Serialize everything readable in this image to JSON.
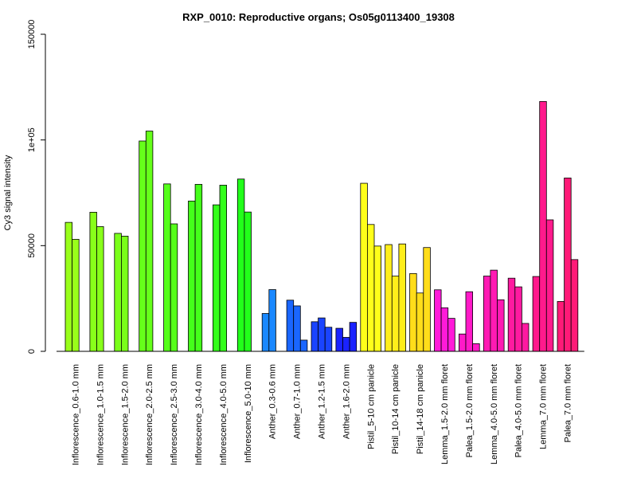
{
  "chart_data": {
    "type": "bar",
    "title": "RXP_0010: Reproductive organs; Os05g0113400_19308",
    "xlabel": "",
    "ylabel": "Cy3 signal intensity",
    "ylim": [
      0,
      150000
    ],
    "yticks": [
      0,
      50000,
      100000,
      150000
    ],
    "ytick_labels": [
      "0",
      "50000",
      "1e+05",
      "150000"
    ],
    "grid": false,
    "legend": "none",
    "groups": [
      {
        "label": "Inflorescence_0.6-1.0 mm",
        "color": "#99ff1a",
        "values": [
          61000,
          53000
        ]
      },
      {
        "label": "Inflorescence_1.0-1.5 mm",
        "color": "#88ff1a",
        "values": [
          65800,
          59000
        ]
      },
      {
        "label": "Inflorescence_1.5-2.0 mm",
        "color": "#7aff1a",
        "values": [
          55800,
          54500
        ]
      },
      {
        "label": "Inflorescence_2.0-2.5 mm",
        "color": "#66ff1a",
        "values": [
          99500,
          104200
        ]
      },
      {
        "label": "Inflorescence_2.5-3.0 mm",
        "color": "#55ff1a",
        "values": [
          79200,
          60300
        ]
      },
      {
        "label": "Inflorescence_3.0-4.0 mm",
        "color": "#44ff1a",
        "values": [
          71100,
          79000
        ]
      },
      {
        "label": "Inflorescence_4.0-5.0 mm",
        "color": "#33ff1a",
        "values": [
          69300,
          78600
        ]
      },
      {
        "label": "Inflorescence_5.0-10 mm",
        "color": "#22ff1a",
        "values": [
          81500,
          65900
        ]
      },
      {
        "label": "Anther_0.3-0.6 mm",
        "color": "#1a88ff",
        "values": [
          17900,
          29200
        ]
      },
      {
        "label": "Anther_0.7-1.0 mm",
        "color": "#1a66ff",
        "values": [
          24200,
          21500,
          5300
        ]
      },
      {
        "label": "Anther_1.2-1.5 mm",
        "color": "#1a44ff",
        "values": [
          14000,
          15800,
          11400
        ]
      },
      {
        "label": "Anther_1.6-2.0 mm",
        "color": "#1a22ff",
        "values": [
          10900,
          6600,
          13700
        ]
      },
      {
        "label": "Pistil_5-10 cm panicle",
        "color": "#ffff1a",
        "values": [
          79500,
          60000,
          49800
        ]
      },
      {
        "label": "Pistil_10-14 cm panicle",
        "color": "#ffee1a",
        "values": [
          50500,
          35600,
          50800
        ]
      },
      {
        "label": "Pistil_14-18 cm panicle",
        "color": "#ffdd1a",
        "values": [
          36800,
          27600,
          49100
        ]
      },
      {
        "label": "Lemma_1.5-2.0 mm floret",
        "color": "#ff1ad9",
        "values": [
          29100,
          20600,
          15600
        ]
      },
      {
        "label": "Palea_1.5-2.0 mm floret",
        "color": "#ff1ac8",
        "values": [
          8200,
          28200,
          3600
        ]
      },
      {
        "label": "Lemma_4.0-5.0 mm floret",
        "color": "#ff1ab3",
        "values": [
          35600,
          38400,
          24400
        ]
      },
      {
        "label": "Palea_4.0-5.0 mm floret",
        "color": "#ff1aa0",
        "values": [
          34600,
          30500,
          13200
        ]
      },
      {
        "label": "Lemma_7.0 mm floret",
        "color": "#ff1a8c",
        "values": [
          35400,
          118200,
          62200
        ]
      },
      {
        "label": "Palea_7.0 mm floret",
        "color": "#ff1a77",
        "values": [
          23600,
          82000,
          43400
        ]
      }
    ]
  }
}
